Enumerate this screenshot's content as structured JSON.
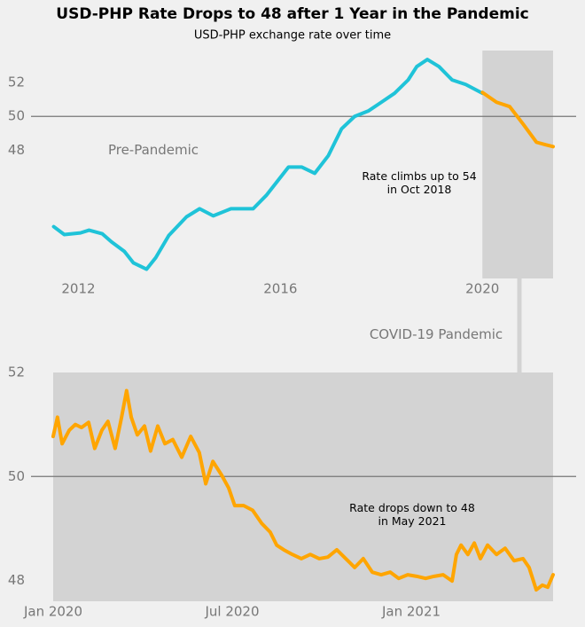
{
  "chart_data": [
    {
      "type": "line",
      "title": "USD-PHP Rate Drops to 48 after 1 Year in the Pandemic",
      "subtitle": "USD-PHP exchange rate over time",
      "xlim": [
        2011.5,
        2021.4
      ],
      "xticks": [
        2012,
        2016,
        2020
      ],
      "ylim": [
        40.4,
        53.9
      ],
      "yticks": [
        48,
        50,
        52
      ],
      "hline": 50,
      "shade_x": [
        2020,
        2021.4
      ],
      "shade_color": "#d3d3d3",
      "annotations": [
        "Pre-Pandemic",
        "Rate climbs up to 54\nin Oct 2018"
      ],
      "series": [
        {
          "name": "Pre-Pandemic",
          "color": "#1fc3d8",
          "x": [
            2011.51,
            2011.72,
            2012.04,
            2012.21,
            2012.47,
            2012.65,
            2012.91,
            2013.09,
            2013.35,
            2013.53,
            2013.79,
            2014.14,
            2014.4,
            2014.67,
            2015.02,
            2015.46,
            2015.72,
            2016.16,
            2016.42,
            2016.68,
            2016.95,
            2017.21,
            2017.47,
            2017.74,
            2018.0,
            2018.26,
            2018.53,
            2018.7,
            2018.91,
            2019.14,
            2019.4,
            2019.67,
            2020.0
          ],
          "values": [
            43.47,
            43.0,
            43.1,
            43.26,
            43.05,
            42.58,
            42.0,
            41.32,
            40.95,
            41.63,
            42.95,
            44.05,
            44.53,
            44.11,
            44.53,
            44.53,
            45.32,
            47.0,
            47.0,
            46.63,
            47.68,
            49.26,
            50.0,
            50.32,
            50.84,
            51.37,
            52.16,
            52.95,
            53.37,
            52.95,
            52.16,
            51.89,
            51.37
          ]
        },
        {
          "name": "COVID-19 Pandemic",
          "color": "#ffa500",
          "x": [
            2020.0,
            2020.28,
            2020.54,
            2020.81,
            2021.07,
            2021.25,
            2021.4
          ],
          "values": [
            51.42,
            50.84,
            50.58,
            49.53,
            48.47,
            48.32,
            48.21
          ]
        }
      ]
    },
    {
      "type": "line",
      "xlim": [
        2020,
        2021.396
      ],
      "xticks": [
        {
          "value": 2020,
          "label": "Jan 2020"
        },
        {
          "value": 2020.5,
          "label": "Jul 2020"
        },
        {
          "value": 2021,
          "label": "Jan 2021"
        }
      ],
      "ylim": [
        47.6,
        52.0
      ],
      "yticks": [
        48,
        50,
        52
      ],
      "hline": 50,
      "shade_x": [
        2020,
        2021.396
      ],
      "shade_color": "#d3d3d3",
      "annotations": [
        "COVID-19 Pandemic",
        "Rate drops down to 48\nin May 2021"
      ],
      "series": [
        {
          "name": "COVID-19 Pandemic",
          "color": "#ffa500",
          "x": [
            2020.0,
            2020.012,
            2020.025,
            2020.045,
            2020.062,
            2020.079,
            2020.099,
            2020.116,
            2020.136,
            2020.153,
            2020.173,
            2020.191,
            2020.205,
            2020.218,
            2020.235,
            2020.255,
            2020.272,
            2020.292,
            2020.312,
            2020.334,
            2020.359,
            2020.384,
            2020.408,
            2020.426,
            2020.446,
            2020.47,
            2020.49,
            2020.507,
            2020.532,
            2020.557,
            2020.582,
            2020.606,
            2020.624,
            2020.644,
            2020.668,
            2020.693,
            2020.718,
            2020.743,
            2020.767,
            2020.792,
            2020.817,
            2020.842,
            2020.866,
            2020.891,
            2020.916,
            2020.941,
            2020.965,
            2020.99,
            2021.015,
            2021.04,
            2021.064,
            2021.089,
            2021.114,
            2021.126,
            2021.139,
            2021.158,
            2021.176,
            2021.193,
            2021.213,
            2021.238,
            2021.262,
            2021.287,
            2021.312,
            2021.329,
            2021.349,
            2021.366,
            2021.381,
            2021.396
          ],
          "values": [
            50.77,
            51.14,
            50.63,
            50.89,
            51.0,
            50.94,
            51.04,
            50.54,
            50.89,
            51.06,
            50.54,
            51.14,
            51.65,
            51.14,
            50.8,
            50.97,
            50.49,
            50.97,
            50.63,
            50.71,
            50.37,
            50.77,
            50.46,
            49.86,
            50.29,
            50.03,
            49.78,
            49.44,
            49.44,
            49.35,
            49.1,
            48.93,
            48.68,
            48.59,
            48.5,
            48.42,
            48.5,
            48.42,
            48.45,
            48.59,
            48.42,
            48.25,
            48.42,
            48.16,
            48.11,
            48.16,
            48.04,
            48.11,
            48.08,
            48.04,
            48.08,
            48.11,
            47.99,
            48.5,
            48.68,
            48.5,
            48.72,
            48.42,
            48.68,
            48.5,
            48.62,
            48.38,
            48.42,
            48.25,
            47.82,
            47.91,
            47.87,
            48.11
          ]
        }
      ]
    }
  ]
}
